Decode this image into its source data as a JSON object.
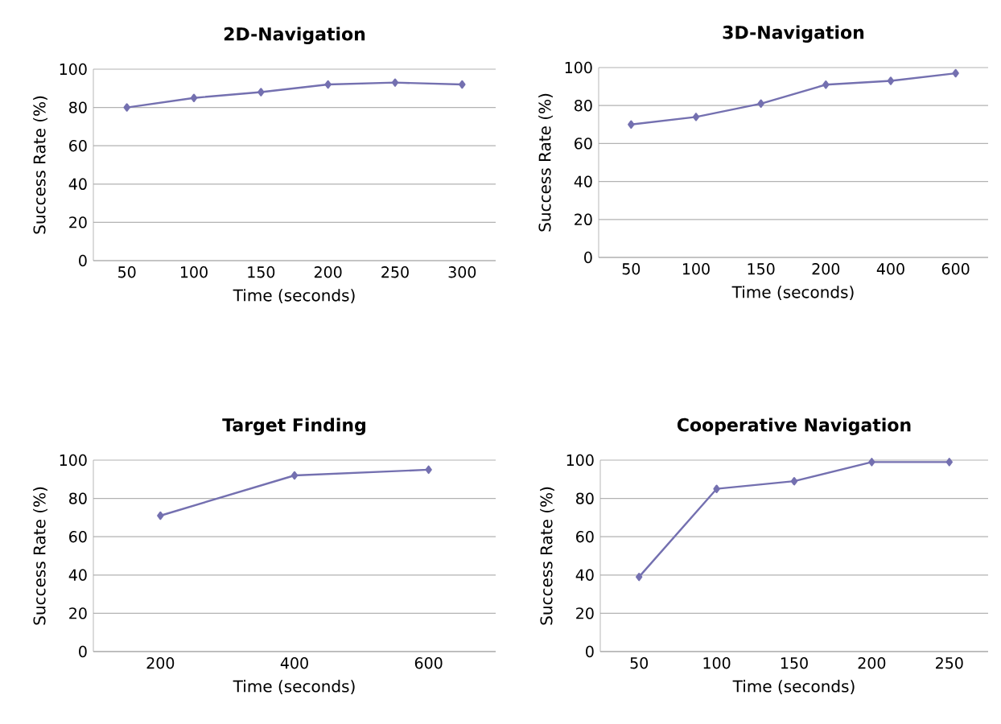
{
  "chart_data": [
    {
      "type": "line",
      "title": "2D-Navigation",
      "xlabel": "Time (seconds)",
      "ylabel": "Success Rate (%)",
      "categories": [
        "50",
        "100",
        "150",
        "200",
        "250",
        "300"
      ],
      "values": [
        80,
        85,
        88,
        92,
        93,
        92
      ],
      "color": "#7470b0",
      "ylim": [
        0,
        100
      ],
      "yticks": [
        0,
        20,
        40,
        60,
        80,
        100
      ],
      "grid": "y",
      "marker": "diamond"
    },
    {
      "type": "line",
      "title": "3D-Navigation",
      "xlabel": "Time (seconds)",
      "ylabel": "Success Rate (%)",
      "categories": [
        "50",
        "100",
        "150",
        "200",
        "400",
        "600"
      ],
      "values": [
        70,
        74,
        81,
        91,
        93,
        97
      ],
      "color": "#7470b0",
      "ylim": [
        0,
        100
      ],
      "yticks": [
        0,
        20,
        40,
        60,
        80,
        100
      ],
      "grid": "y",
      "marker": "diamond"
    },
    {
      "type": "line",
      "title": "Target Finding",
      "xlabel": "Time (seconds)",
      "ylabel": "Success Rate (%)",
      "categories": [
        "200",
        "400",
        "600"
      ],
      "values": [
        71,
        92,
        95
      ],
      "color": "#7470b0",
      "ylim": [
        0,
        100
      ],
      "yticks": [
        0,
        20,
        40,
        60,
        80,
        100
      ],
      "grid": "y",
      "marker": "diamond"
    },
    {
      "type": "line",
      "title": "Cooperative Navigation",
      "xlabel": "Time (seconds)",
      "ylabel": "Success Rate (%)",
      "categories": [
        "50",
        "100",
        "150",
        "200",
        "250"
      ],
      "values": [
        39,
        85,
        89,
        99,
        99
      ],
      "color": "#7470b0",
      "ylim": [
        0,
        100
      ],
      "yticks": [
        0,
        20,
        40,
        60,
        80,
        100
      ],
      "grid": "y",
      "marker": "diamond"
    }
  ]
}
